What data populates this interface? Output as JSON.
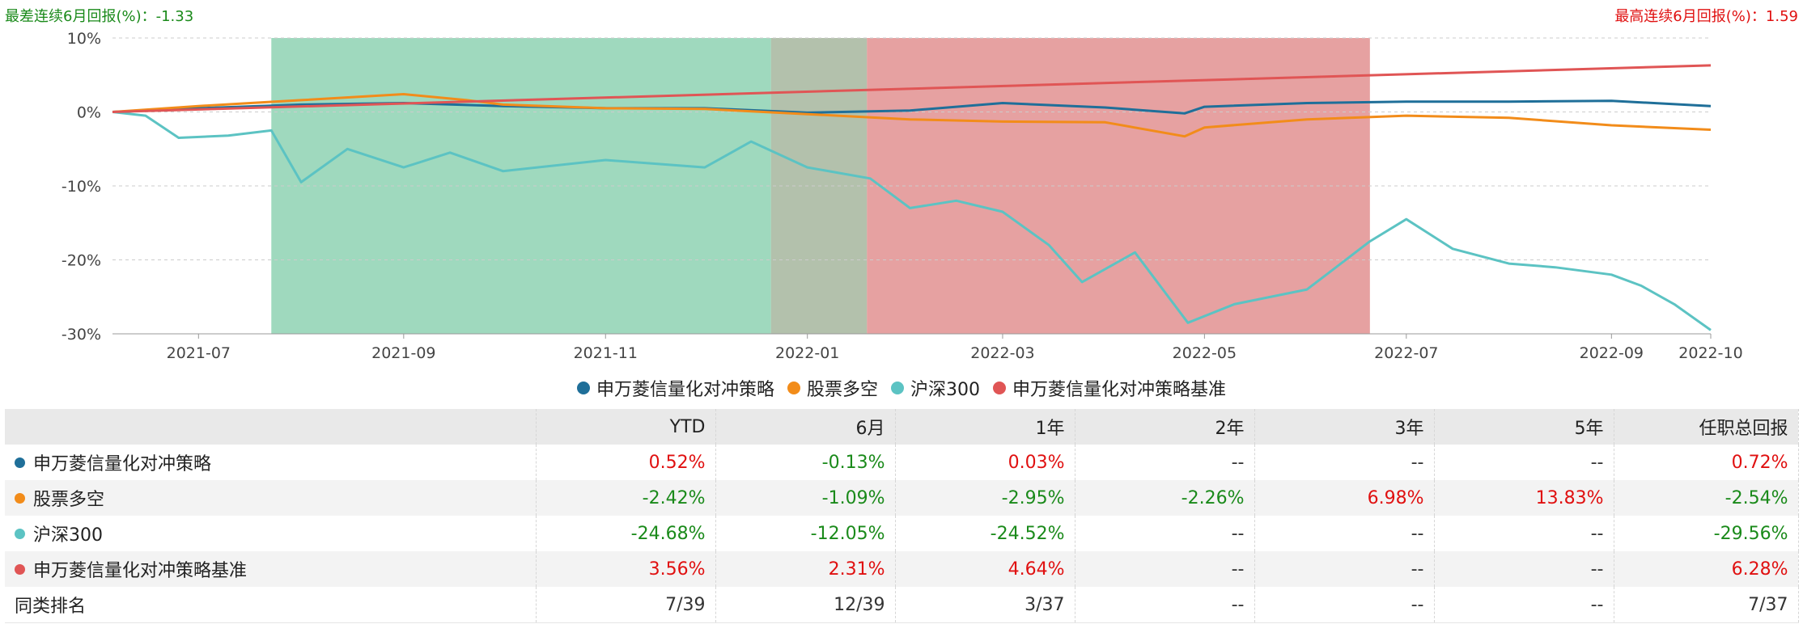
{
  "top_notes": {
    "left": "最差连续6月回报(%)：-1.33",
    "right": "最高连续6月回报(%)：1.59"
  },
  "chart_data": {
    "type": "line",
    "y_ticks": [
      "10%",
      "0%",
      "-10%",
      "-20%",
      "-30%"
    ],
    "ylim": [
      -30,
      10
    ],
    "x_ticks": [
      "2021-07",
      "2021-09",
      "2021-11",
      "2022-01",
      "2022-03",
      "2022-05",
      "2022-07",
      "2022-09",
      "2022-10"
    ],
    "x_tick_dates": [
      "2021-07-01",
      "2021-09-01",
      "2021-11-01",
      "2022-01-01",
      "2022-03-01",
      "2022-05-01",
      "2022-07-01",
      "2022-09-01",
      "2022-10-01"
    ],
    "xlim": [
      "2021-06-05",
      "2022-10-01"
    ],
    "grid": "horizontal-dashed",
    "legend_position": "bottom-center",
    "bands": [
      {
        "start": "2021-07-23",
        "end": "2021-12-21",
        "color": "#6cc59b"
      },
      {
        "start": "2021-12-21",
        "end": "2022-01-19",
        "color": "#8a9f7f"
      },
      {
        "start": "2022-01-19",
        "end": "2022-06-20",
        "color": "#d96e6e"
      }
    ],
    "series": [
      {
        "name": "申万菱信量化对冲策略",
        "color": "#1f6f99",
        "points": [
          [
            "2021-06-05",
            0
          ],
          [
            "2021-07-01",
            0.5
          ],
          [
            "2021-08-01",
            1.0
          ],
          [
            "2021-09-01",
            1.2
          ],
          [
            "2021-10-01",
            0.8
          ],
          [
            "2021-11-01",
            0.5
          ],
          [
            "2021-12-01",
            0.5
          ],
          [
            "2022-01-01",
            -0.1
          ],
          [
            "2022-02-01",
            0.2
          ],
          [
            "2022-03-01",
            1.2
          ],
          [
            "2022-04-01",
            0.6
          ],
          [
            "2022-04-25",
            -0.2
          ],
          [
            "2022-05-01",
            0.7
          ],
          [
            "2022-06-01",
            1.2
          ],
          [
            "2022-07-01",
            1.4
          ],
          [
            "2022-08-01",
            1.4
          ],
          [
            "2022-09-01",
            1.5
          ],
          [
            "2022-10-01",
            0.8
          ]
        ]
      },
      {
        "name": "股票多空",
        "color": "#f28c1a",
        "points": [
          [
            "2021-06-05",
            0
          ],
          [
            "2021-07-01",
            0.8
          ],
          [
            "2021-08-01",
            1.6
          ],
          [
            "2021-09-01",
            2.4
          ],
          [
            "2021-09-20",
            1.6
          ],
          [
            "2021-10-01",
            1.0
          ],
          [
            "2021-11-01",
            0.5
          ],
          [
            "2021-12-01",
            0.4
          ],
          [
            "2022-01-01",
            -0.3
          ],
          [
            "2022-02-01",
            -1.0
          ],
          [
            "2022-03-01",
            -1.3
          ],
          [
            "2022-04-01",
            -1.4
          ],
          [
            "2022-04-25",
            -3.3
          ],
          [
            "2022-05-01",
            -2.1
          ],
          [
            "2022-06-01",
            -1.0
          ],
          [
            "2022-07-01",
            -0.5
          ],
          [
            "2022-08-01",
            -0.8
          ],
          [
            "2022-09-01",
            -1.8
          ],
          [
            "2022-10-01",
            -2.4
          ]
        ]
      },
      {
        "name": "沪深300",
        "color": "#5cc3c3",
        "points": [
          [
            "2021-06-05",
            0
          ],
          [
            "2021-06-15",
            -0.5
          ],
          [
            "2021-06-25",
            -3.5
          ],
          [
            "2021-07-10",
            -3.2
          ],
          [
            "2021-07-23",
            -2.5
          ],
          [
            "2021-08-01",
            -9.5
          ],
          [
            "2021-08-15",
            -5.0
          ],
          [
            "2021-09-01",
            -7.5
          ],
          [
            "2021-09-15",
            -5.5
          ],
          [
            "2021-10-01",
            -8.0
          ],
          [
            "2021-11-01",
            -6.5
          ],
          [
            "2021-12-01",
            -7.5
          ],
          [
            "2021-12-15",
            -4.0
          ],
          [
            "2022-01-01",
            -7.5
          ],
          [
            "2022-01-20",
            -9.0
          ],
          [
            "2022-02-01",
            -13.0
          ],
          [
            "2022-02-15",
            -12.0
          ],
          [
            "2022-03-01",
            -13.5
          ],
          [
            "2022-03-15",
            -18.0
          ],
          [
            "2022-03-25",
            -23.0
          ],
          [
            "2022-04-10",
            -19.0
          ],
          [
            "2022-04-26",
            -28.5
          ],
          [
            "2022-05-10",
            -26.0
          ],
          [
            "2022-06-01",
            -24.0
          ],
          [
            "2022-06-20",
            -17.5
          ],
          [
            "2022-07-01",
            -14.5
          ],
          [
            "2022-07-15",
            -18.5
          ],
          [
            "2022-08-01",
            -20.5
          ],
          [
            "2022-08-15",
            -21.0
          ],
          [
            "2022-09-01",
            -22.0
          ],
          [
            "2022-09-10",
            -23.5
          ],
          [
            "2022-09-20",
            -26.0
          ],
          [
            "2022-10-01",
            -29.5
          ]
        ]
      },
      {
        "name": "申万菱信量化对冲策略基准",
        "color": "#e05555",
        "points": [
          [
            "2021-06-05",
            0
          ],
          [
            "2022-10-01",
            6.3
          ]
        ]
      }
    ]
  },
  "table": {
    "headers": [
      "",
      "YTD",
      "6月",
      "1年",
      "2年",
      "3年",
      "5年",
      "任职总回报"
    ],
    "rows": [
      {
        "name": "申万菱信量化对冲策略",
        "color": "#1f6f99",
        "values": [
          "0.52%",
          "-0.13%",
          "0.03%",
          "--",
          "--",
          "--",
          "0.72%"
        ]
      },
      {
        "name": "股票多空",
        "color": "#f28c1a",
        "values": [
          "-2.42%",
          "-1.09%",
          "-2.95%",
          "-2.26%",
          "6.98%",
          "13.83%",
          "-2.54%"
        ]
      },
      {
        "name": "沪深300",
        "color": "#5cc3c3",
        "values": [
          "-24.68%",
          "-12.05%",
          "-24.52%",
          "--",
          "--",
          "--",
          "-29.56%"
        ]
      },
      {
        "name": "申万菱信量化对冲策略基准",
        "color": "#e05555",
        "values": [
          "3.56%",
          "2.31%",
          "4.64%",
          "--",
          "--",
          "--",
          "6.28%"
        ]
      },
      {
        "name": "同类排名",
        "color": "",
        "values": [
          "7/39",
          "12/39",
          "3/37",
          "--",
          "--",
          "--",
          "7/37"
        ]
      }
    ]
  }
}
